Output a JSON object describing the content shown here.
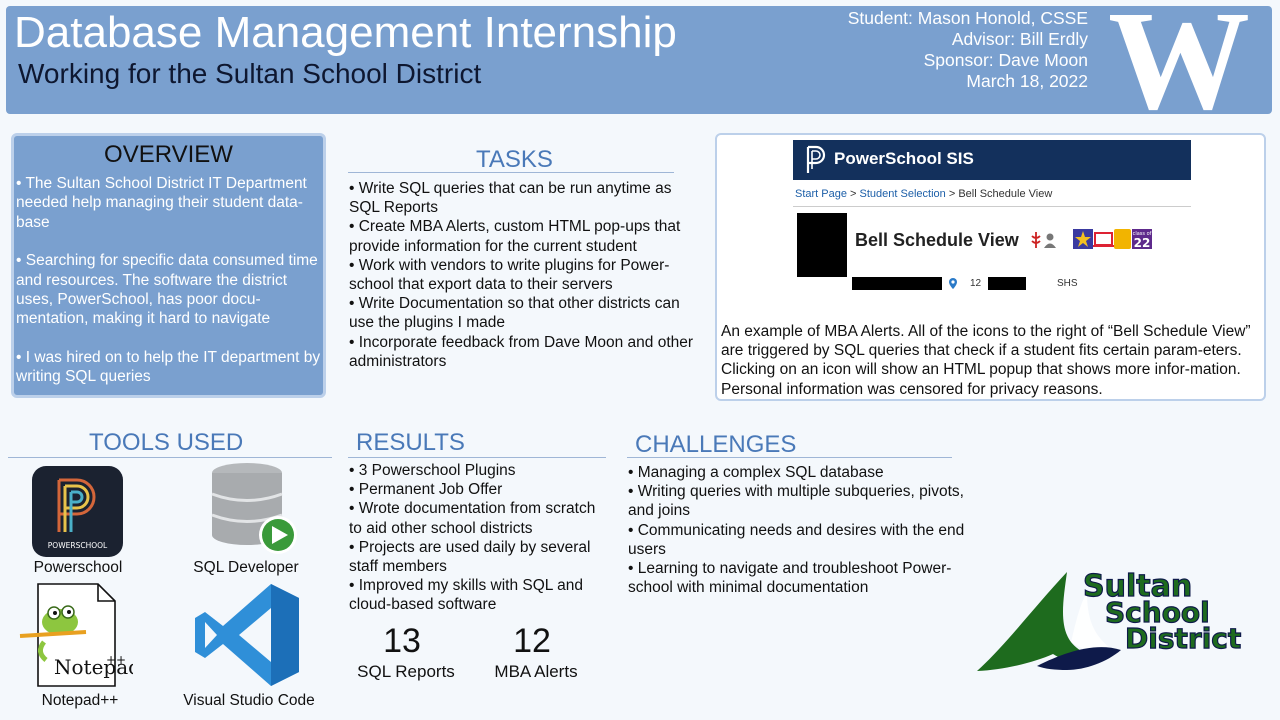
{
  "header": {
    "title": "Database Management Internship",
    "subtitle": "Working for the Sultan School District",
    "student": "Student: Mason Honold, CSSE",
    "advisor": "Advisor: Bill Erdly",
    "sponsor": "Sponsor: Dave Moon",
    "date": "March 18, 2022",
    "logo_letter": "W"
  },
  "overview": {
    "title": "OVERVIEW",
    "items": [
      "• The Sultan School District IT Department needed help managing their student data-base",
      "• Searching for specific data consumed time and resources. The software the district uses, PowerSchool, has poor docu-mentation, making it hard to navigate",
      "• I was hired on to help the IT department by writing SQL queries"
    ]
  },
  "tasks": {
    "title": "TASKS",
    "items": [
      "• Write SQL queries that can be run anytime as SQL Reports",
      "• Create MBA Alerts, custom HTML pop-ups that provide information for the current student",
      "• Work with vendors to write plugins for Power-school that export data to their servers",
      "• Write Documentation so that other districts can use the plugins I made",
      "• Incorporate feedback from Dave Moon and other administrators"
    ]
  },
  "example": {
    "app_title": "PowerSchool SIS",
    "crumb_start": "Start Page",
    "crumb_sep1": " > ",
    "crumb_student": "Student Selection",
    "crumb_sep2": " > ",
    "crumb_current": "Bell Schedule View",
    "page_title": "Bell Schedule View",
    "grade": "12",
    "school": "SHS",
    "badge_class_of": "class of",
    "badge_year": "22",
    "caption": "An example of MBA Alerts. All of the icons to the right of “Bell Schedule View” are triggered by SQL queries that check if a student fits certain param-eters. Clicking on an icon will show an HTML popup that shows more infor-mation. Personal information was censored for privacy reasons."
  },
  "tools": {
    "title": "TOOLS USED",
    "powerschool_logo_text": "POWERSCHOOL",
    "items": [
      {
        "label": "Powerschool",
        "icon": "powerschool-icon"
      },
      {
        "label": "SQL Developer",
        "icon": "sql-developer-icon"
      },
      {
        "label": "Notepad++",
        "icon": "notepad-plus-plus-icon"
      },
      {
        "label": "Visual Studio Code",
        "icon": "vscode-icon"
      }
    ]
  },
  "results": {
    "title": "RESULTS",
    "items": [
      "• 3 Powerschool Plugins",
      "• Permanent Job Offer",
      "• Wrote documentation from scratch to aid other school districts",
      "• Projects are used daily by several staff members",
      "• Improved my skills with SQL and cloud-based software"
    ],
    "stats": [
      {
        "value": "13",
        "label": "SQL Reports"
      },
      {
        "value": "12",
        "label": "MBA Alerts"
      }
    ]
  },
  "challenges": {
    "title": "CHALLENGES",
    "items": [
      "• Managing a complex SQL database",
      "• Writing queries with multiple subqueries, pivots, and joins",
      "• Communicating needs and desires with the end users",
      "• Learning to navigate and troubleshoot Power-school with minimal documentation"
    ]
  },
  "district_logo": {
    "line1": "Sultan",
    "line2": "School",
    "line3": "District"
  },
  "colors": {
    "header_blue": "#7aa0cf",
    "section_title_blue": "#4a79b8",
    "powerschool_navy": "#13305c",
    "district_green": "#1e6b1e",
    "district_navy": "#0e1a4a"
  }
}
